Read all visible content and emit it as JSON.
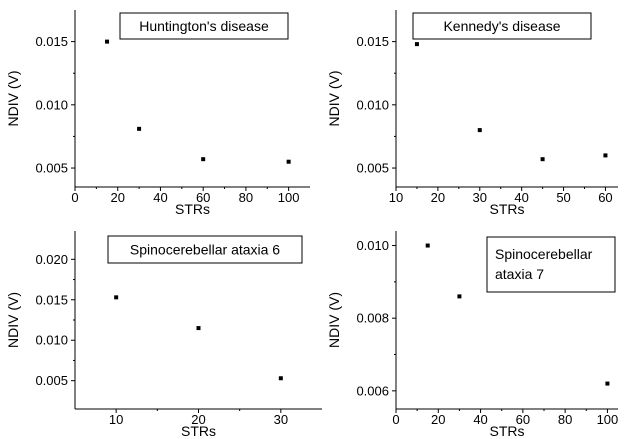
{
  "chart_data": [
    {
      "type": "scatter",
      "title": "Huntington's disease",
      "xlabel": "STRs",
      "ylabel": "NDIV (V)",
      "xlim": [
        0,
        110
      ],
      "ylim": [
        0.0035,
        0.0175
      ],
      "xticks": [
        0,
        20,
        40,
        60,
        80,
        100
      ],
      "xtick_labels": [
        "0",
        "20",
        "40",
        "60",
        "80",
        "100"
      ],
      "yticks": [
        0.005,
        0.01,
        0.015
      ],
      "ytick_labels": [
        "0.005",
        "0.010",
        "0.015"
      ],
      "x": [
        15,
        30,
        60,
        100
      ],
      "y": [
        0.015,
        0.0081,
        0.0057,
        0.0055
      ],
      "legend_placement": "top-right"
    },
    {
      "type": "scatter",
      "title": "Kennedy's disease",
      "xlabel": "STRs",
      "ylabel": "NDIV (V)",
      "xlim": [
        10,
        63
      ],
      "ylim": [
        0.0035,
        0.0175
      ],
      "xticks": [
        10,
        20,
        30,
        40,
        50,
        60
      ],
      "xtick_labels": [
        "10",
        "20",
        "30",
        "40",
        "50",
        "60"
      ],
      "yticks": [
        0.005,
        0.01,
        0.015
      ],
      "ytick_labels": [
        "0.005",
        "0.010",
        "0.015"
      ],
      "x": [
        15,
        30,
        45,
        60
      ],
      "y": [
        0.0148,
        0.008,
        0.0057,
        0.006
      ],
      "legend_placement": "top-right"
    },
    {
      "type": "scatter",
      "title": "Spinocerebellar ataxia 6",
      "xlabel": "STRs",
      "ylabel": "NDIV (V)",
      "xlim": [
        5,
        35
      ],
      "ylim": [
        0.0015,
        0.0235
      ],
      "xticks": [
        10,
        20,
        30
      ],
      "xtick_labels": [
        "10",
        "20",
        "30"
      ],
      "yticks": [
        0.005,
        0.01,
        0.015,
        0.02
      ],
      "ytick_labels": [
        "0.005",
        "0.010",
        "0.015",
        "0.020"
      ],
      "x": [
        10,
        20,
        30
      ],
      "y": [
        0.0153,
        0.0115,
        0.0053
      ],
      "legend_placement": "top-center"
    },
    {
      "type": "scatter",
      "title": [
        "Spinocerebellar",
        "ataxia 7"
      ],
      "xlabel": "STRs",
      "ylabel": "NDIV (V)",
      "xlim": [
        0,
        105
      ],
      "ylim": [
        0.0055,
        0.0104
      ],
      "xticks": [
        0,
        20,
        40,
        60,
        80,
        100
      ],
      "xtick_labels": [
        "0",
        "20",
        "40",
        "60",
        "80",
        "100"
      ],
      "yticks": [
        0.006,
        0.008,
        0.01
      ],
      "ytick_labels": [
        "0.006",
        "0.008",
        "0.010"
      ],
      "x": [
        15,
        30,
        100
      ],
      "y": [
        0.01,
        0.0086,
        0.0062
      ],
      "legend_placement": "top-right"
    }
  ]
}
